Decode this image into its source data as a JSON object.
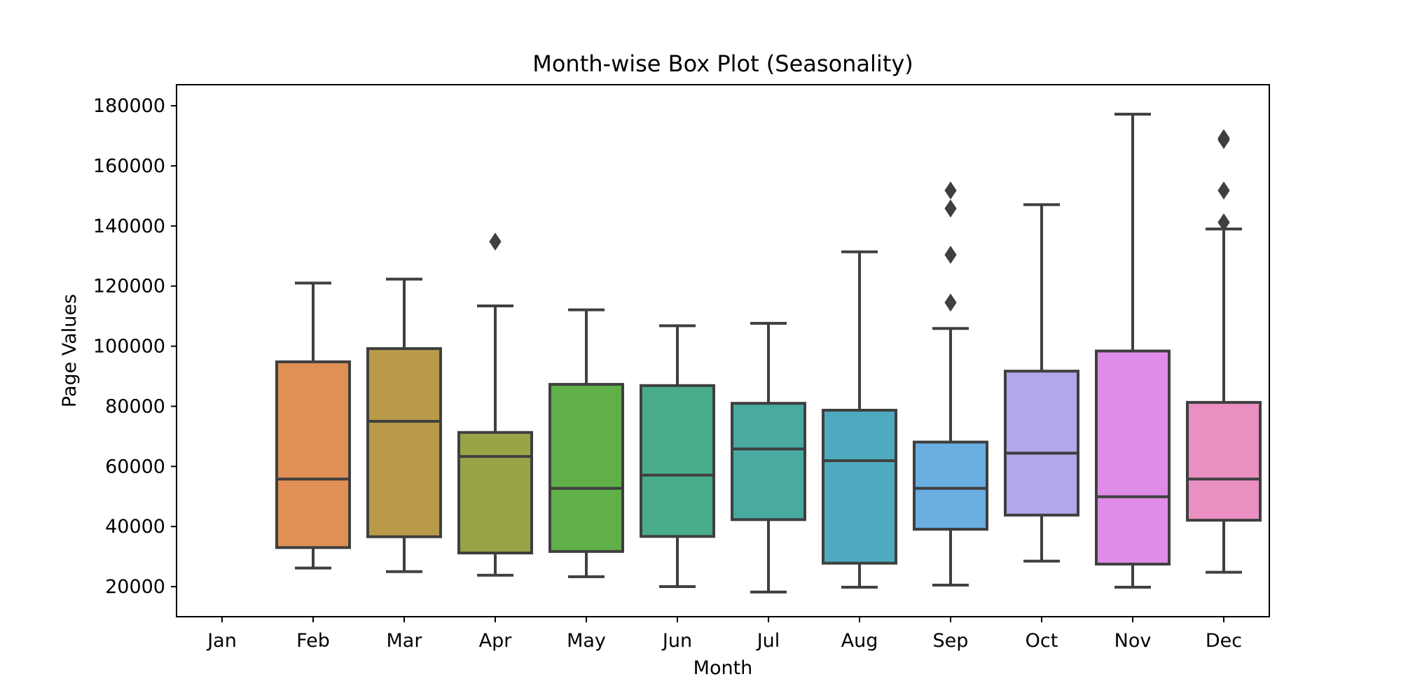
{
  "chart_data": {
    "type": "box",
    "title": "Month-wise Box Plot (Seasonality)",
    "xlabel": "Month",
    "ylabel": "Page Values",
    "categories": [
      "Jan",
      "Feb",
      "Mar",
      "Apr",
      "May",
      "Jun",
      "Jul",
      "Aug",
      "Sep",
      "Oct",
      "Nov",
      "Dec"
    ],
    "ylim": [
      10000,
      187000
    ],
    "yticks": [
      20000,
      40000,
      60000,
      80000,
      100000,
      120000,
      140000,
      160000,
      180000
    ],
    "grid": false,
    "legend": "none",
    "boxes": [
      {
        "category": "Jan",
        "empty": true
      },
      {
        "category": "Feb",
        "whisker_low": 26200,
        "q1": 33000,
        "median": 55800,
        "q3": 94800,
        "whisker_high": 121000,
        "outliers": [],
        "color": "#e08f55"
      },
      {
        "category": "Mar",
        "whisker_low": 25000,
        "q1": 36600,
        "median": 75000,
        "q3": 99200,
        "whisker_high": 122300,
        "outliers": [],
        "color": "#b89a48"
      },
      {
        "category": "Apr",
        "whisker_low": 23800,
        "q1": 31200,
        "median": 63300,
        "q3": 71300,
        "whisker_high": 113400,
        "outliers": [
          134800
        ],
        "color": "#9aa446"
      },
      {
        "category": "May",
        "whisker_low": 23300,
        "q1": 31700,
        "median": 52700,
        "q3": 87300,
        "whisker_high": 112100,
        "outliers": [],
        "color": "#60b04a"
      },
      {
        "category": "Jun",
        "whisker_low": 20000,
        "q1": 36700,
        "median": 57100,
        "q3": 86900,
        "whisker_high": 106800,
        "outliers": [],
        "color": "#48ad88"
      },
      {
        "category": "Jul",
        "whisker_low": 18200,
        "q1": 42300,
        "median": 65800,
        "q3": 81000,
        "whisker_high": 107600,
        "outliers": [],
        "color": "#48aaa0"
      },
      {
        "category": "Aug",
        "whisker_low": 19800,
        "q1": 27800,
        "median": 61900,
        "q3": 78700,
        "whisker_high": 131400,
        "outliers": [],
        "color": "#4eabbf"
      },
      {
        "category": "Sep",
        "whisker_low": 20500,
        "q1": 39100,
        "median": 52700,
        "q3": 68100,
        "whisker_high": 105900,
        "outliers": [
          114500,
          130400,
          145800,
          151800
        ],
        "color": "#6aaee2"
      },
      {
        "category": "Oct",
        "whisker_low": 28500,
        "q1": 43800,
        "median": 64400,
        "q3": 91700,
        "whisker_high": 147100,
        "outliers": [],
        "color": "#b3a6ea"
      },
      {
        "category": "Nov",
        "whisker_low": 19800,
        "q1": 27500,
        "median": 49900,
        "q3": 98400,
        "whisker_high": 177200,
        "outliers": [],
        "color": "#df8be8"
      },
      {
        "category": "Dec",
        "whisker_low": 24800,
        "q1": 42100,
        "median": 55800,
        "q3": 81300,
        "whisker_high": 139000,
        "outliers": [
          141200,
          151800,
          168600,
          169200
        ],
        "color": "#e98fc2"
      }
    ]
  }
}
